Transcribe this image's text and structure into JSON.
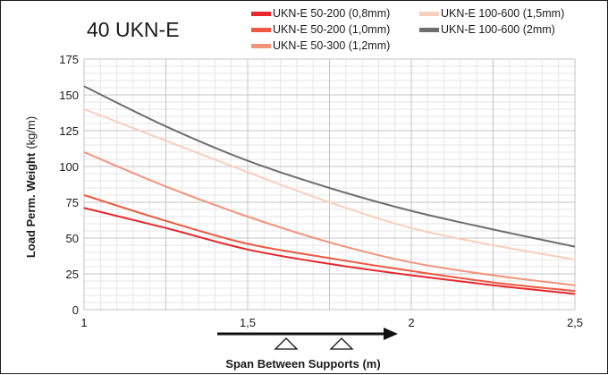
{
  "chart_data": {
    "type": "line",
    "title": "40 UKN-E",
    "xlabel": "Span Between Supports (m)",
    "ylabel_bold": "Load Perm. Weight",
    "ylabel_unit": "(kg/m)",
    "xlim": [
      1,
      2.5
    ],
    "ylim": [
      0,
      175
    ],
    "x_ticks": [
      "1",
      "1,5",
      "2",
      "2,5"
    ],
    "y_ticks": [
      "0",
      "25",
      "50",
      "75",
      "100",
      "125",
      "150",
      "175"
    ],
    "grid": true,
    "legend_position": "top",
    "x": [
      1,
      1.25,
      1.5,
      1.75,
      2,
      2.25,
      2.5
    ],
    "series": [
      {
        "name": "UKN-E 50-200 (0,8mm)",
        "color": "#e8262b",
        "values": [
          71,
          57,
          42,
          32,
          24,
          17,
          11
        ]
      },
      {
        "name": "UKN-E 50-200 (1,0mm)",
        "color": "#ee5840",
        "values": [
          80,
          62,
          46,
          36,
          27,
          19,
          13
        ]
      },
      {
        "name": "UKN-E 50-300 (1,2mm)",
        "color": "#f3927a",
        "values": [
          110,
          86,
          65,
          47,
          33,
          24,
          17
        ]
      },
      {
        "name": "UKN-E 100-600 (1,5mm)",
        "color": "#f8cfbd",
        "values": [
          140,
          118,
          96,
          75,
          57,
          45,
          35
        ]
      },
      {
        "name": "UKN-E 100-600 (2mm)",
        "color": "#6e6e6e",
        "values": [
          156,
          128,
          104,
          85,
          69,
          56,
          44
        ]
      }
    ]
  }
}
